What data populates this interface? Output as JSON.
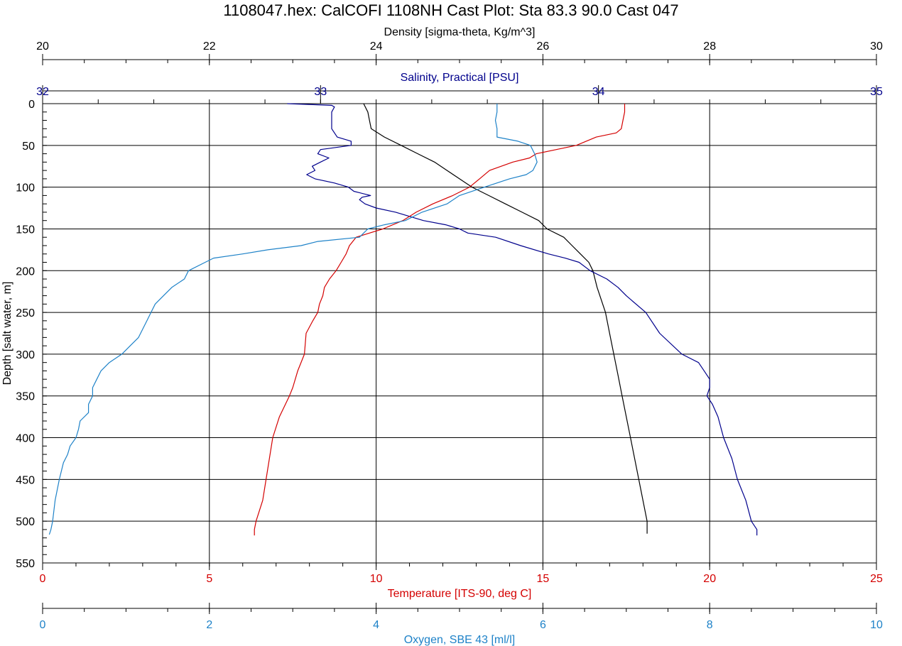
{
  "title": "1108047.hex: CalCOFI 1108NH Cast Plot: Sta 83.3  90.0  Cast 047",
  "colors": {
    "density": "#000000",
    "salinity": "#00008c",
    "temperature": "#d40000",
    "oxygen": "#1e82c8",
    "grid": "#000000"
  },
  "chart_data": {
    "type": "line",
    "y_axis": {
      "label": "Depth [salt water, m]",
      "range": [
        0,
        550
      ],
      "inverted": true,
      "ticks": [
        0,
        50,
        100,
        150,
        200,
        250,
        300,
        350,
        400,
        450,
        500,
        550
      ]
    },
    "x_axes": [
      {
        "key": "density",
        "label": "Density [sigma-theta, Kg/m^3]",
        "range": [
          20,
          30
        ],
        "ticks": [
          20,
          22,
          24,
          26,
          28,
          30
        ],
        "position": "top"
      },
      {
        "key": "salinity",
        "label": "Salinity, Practical [PSU]",
        "range": [
          32,
          35
        ],
        "ticks": [
          32,
          33,
          34,
          35
        ],
        "position": "top"
      },
      {
        "key": "temperature",
        "label": "Temperature [ITS-90, deg C]",
        "range": [
          0,
          25
        ],
        "ticks": [
          0,
          5,
          10,
          15,
          20,
          25
        ],
        "position": "bottom"
      },
      {
        "key": "oxygen",
        "label": "Oxygen, SBE 43 [ml/l]",
        "range": [
          0,
          10
        ],
        "ticks": [
          0,
          2,
          4,
          6,
          8,
          10
        ],
        "position": "bottom"
      }
    ],
    "grid": true,
    "series": [
      {
        "key": "density",
        "depth": [
          0,
          10,
          20,
          30,
          40,
          50,
          60,
          70,
          80,
          90,
          100,
          110,
          120,
          130,
          140,
          150,
          160,
          170,
          180,
          190,
          200,
          220,
          250,
          275,
          300,
          325,
          350,
          375,
          400,
          450,
          500,
          515
        ],
        "values": [
          23.85,
          23.9,
          23.92,
          23.94,
          24.1,
          24.3,
          24.5,
          24.7,
          24.85,
          25.0,
          25.15,
          25.35,
          25.55,
          25.75,
          25.95,
          26.05,
          26.25,
          26.35,
          26.45,
          26.55,
          26.6,
          26.65,
          26.75,
          26.8,
          26.85,
          26.9,
          26.95,
          27.0,
          27.05,
          27.15,
          27.25,
          27.25
        ]
      },
      {
        "key": "salinity",
        "depth": [
          0,
          2,
          4,
          10,
          20,
          30,
          40,
          45,
          50,
          55,
          60,
          65,
          70,
          75,
          80,
          85,
          90,
          95,
          100,
          105,
          110,
          112,
          115,
          120,
          125,
          130,
          135,
          140,
          145,
          150,
          155,
          160,
          170,
          180,
          185,
          190,
          200,
          210,
          220,
          230,
          250,
          275,
          300,
          310,
          320,
          330,
          340,
          350,
          360,
          375,
          400,
          425,
          450,
          475,
          500,
          510,
          517
        ],
        "values": [
          32.88,
          33.04,
          33.05,
          33.04,
          33.04,
          33.04,
          33.06,
          33.11,
          33.11,
          33.0,
          32.99,
          33.03,
          33.0,
          32.97,
          32.98,
          32.95,
          32.98,
          33.05,
          33.1,
          33.12,
          33.18,
          33.15,
          33.14,
          33.16,
          33.2,
          33.27,
          33.32,
          33.37,
          33.45,
          33.5,
          33.53,
          33.63,
          33.72,
          33.82,
          33.88,
          33.93,
          33.97,
          34.03,
          34.07,
          34.1,
          34.17,
          34.22,
          34.3,
          34.36,
          34.38,
          34.4,
          34.4,
          34.39,
          34.41,
          34.43,
          34.45,
          34.48,
          34.5,
          34.53,
          34.55,
          34.57,
          34.57
        ]
      },
      {
        "key": "temperature",
        "depth": [
          0,
          10,
          20,
          30,
          35,
          40,
          45,
          50,
          55,
          60,
          65,
          70,
          80,
          90,
          100,
          110,
          120,
          130,
          140,
          150,
          155,
          160,
          170,
          180,
          190,
          200,
          210,
          220,
          230,
          240,
          250,
          260,
          275,
          300,
          320,
          340,
          350,
          375,
          400,
          425,
          450,
          475,
          500,
          510,
          517
        ],
        "values": [
          17.45,
          17.45,
          17.4,
          17.35,
          17.2,
          16.6,
          16.3,
          16.0,
          15.4,
          14.8,
          14.6,
          14.1,
          13.4,
          13.1,
          12.8,
          12.3,
          11.7,
          11.2,
          10.8,
          10.2,
          9.8,
          9.4,
          9.2,
          9.1,
          8.95,
          8.8,
          8.6,
          8.45,
          8.4,
          8.3,
          8.25,
          8.1,
          7.9,
          7.85,
          7.65,
          7.5,
          7.4,
          7.1,
          6.9,
          6.8,
          6.7,
          6.6,
          6.4,
          6.35,
          6.35
        ]
      },
      {
        "key": "oxygen",
        "depth": [
          0,
          10,
          20,
          30,
          40,
          45,
          50,
          60,
          70,
          80,
          85,
          90,
          100,
          110,
          120,
          130,
          140,
          145,
          150,
          155,
          160,
          165,
          170,
          175,
          180,
          185,
          190,
          200,
          210,
          220,
          230,
          240,
          250,
          260,
          270,
          280,
          290,
          300,
          310,
          320,
          330,
          340,
          350,
          360,
          370,
          380,
          390,
          400,
          410,
          420,
          430,
          450,
          475,
          500,
          510,
          516
        ],
        "values": [
          5.45,
          5.45,
          5.43,
          5.45,
          5.45,
          5.7,
          5.85,
          5.9,
          5.93,
          5.88,
          5.8,
          5.6,
          5.3,
          5.0,
          4.85,
          4.55,
          4.35,
          4.1,
          3.9,
          3.85,
          3.8,
          3.3,
          3.1,
          2.7,
          2.4,
          2.05,
          1.95,
          1.75,
          1.7,
          1.55,
          1.45,
          1.35,
          1.3,
          1.25,
          1.2,
          1.15,
          1.05,
          0.95,
          0.8,
          0.7,
          0.65,
          0.6,
          0.6,
          0.55,
          0.55,
          0.45,
          0.43,
          0.4,
          0.33,
          0.3,
          0.25,
          0.2,
          0.15,
          0.12,
          0.1,
          0.08
        ]
      }
    ]
  }
}
